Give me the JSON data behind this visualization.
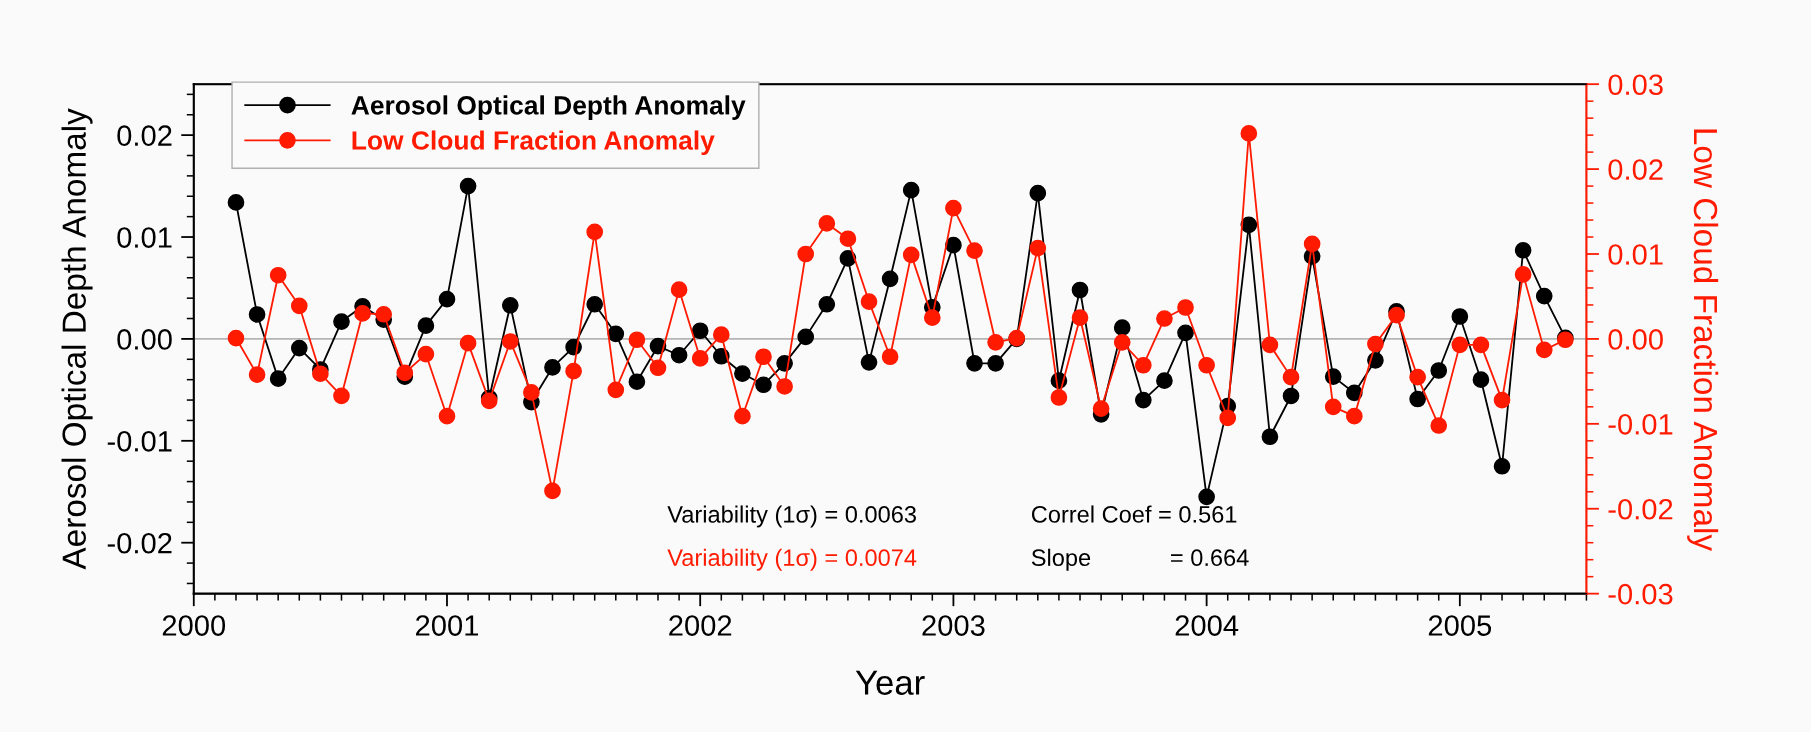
{
  "chart_data": {
    "type": "line",
    "xlabel": "Year",
    "ylabel": "Aerosol Optical Depth Anomaly",
    "y2label": "Low Cloud Fraction Anomaly",
    "x": [
      "2000-03",
      "2000-04",
      "2000-05",
      "2000-06",
      "2000-07",
      "2000-08",
      "2000-09",
      "2000-10",
      "2000-11",
      "2000-12",
      "2001-01",
      "2001-02",
      "2001-03",
      "2001-04",
      "2001-05",
      "2001-06",
      "2001-07",
      "2001-08",
      "2001-09",
      "2001-10",
      "2001-11",
      "2001-12",
      "2002-01",
      "2002-02",
      "2002-03",
      "2002-04",
      "2002-05",
      "2002-06",
      "2002-07",
      "2002-08",
      "2002-09",
      "2002-10",
      "2002-11",
      "2002-12",
      "2003-01",
      "2003-02",
      "2003-03",
      "2003-04",
      "2003-05",
      "2003-06",
      "2003-07",
      "2003-08",
      "2003-09",
      "2003-10",
      "2003-11",
      "2003-12",
      "2004-01",
      "2004-02",
      "2004-03",
      "2004-04",
      "2004-05",
      "2004-06",
      "2004-07",
      "2004-08",
      "2004-09",
      "2004-10",
      "2004-11",
      "2004-12",
      "2005-01",
      "2005-02",
      "2005-03",
      "2005-04",
      "2005-05",
      "2005-06"
    ],
    "series": [
      {
        "name": "Aerosol Optical Depth Anomaly",
        "color": "#000000",
        "axis": "y",
        "values": [
          0.0134,
          0.0024,
          -0.0039,
          -0.0009,
          -0.003,
          0.0017,
          0.0032,
          0.0019,
          -0.0037,
          0.0013,
          0.0039,
          0.015,
          -0.0058,
          0.0033,
          -0.0062,
          -0.0028,
          -0.0008,
          0.0034,
          0.0005,
          -0.0042,
          -0.0007,
          -0.0016,
          0.0008,
          -0.0017,
          -0.0034,
          -0.0045,
          -0.0024,
          0.0002,
          0.0034,
          0.0079,
          -0.0023,
          0.0059,
          0.0146,
          0.0031,
          0.0092,
          -0.0024,
          -0.0024,
          0.0,
          0.0143,
          -0.0041,
          0.0048,
          -0.0074,
          0.0011,
          -0.006,
          -0.0041,
          0.0006,
          -0.0155,
          -0.0066,
          0.0112,
          -0.0096,
          -0.0056,
          0.0081,
          -0.0037,
          -0.0053,
          -0.0021,
          0.0027,
          -0.0059,
          -0.0031,
          0.0022,
          -0.004,
          -0.0125,
          0.0087,
          0.0042,
          0.0001
        ]
      },
      {
        "name": "Low Cloud Fraction Anomaly",
        "color": "#ff1a00",
        "axis": "y2",
        "values": [
          0.0001,
          -0.0042,
          0.0075,
          0.0039,
          -0.0041,
          -0.0067,
          0.003,
          0.0029,
          -0.004,
          -0.0018,
          -0.0091,
          -0.0005,
          -0.0073,
          -0.0003,
          -0.0063,
          -0.0179,
          -0.0038,
          0.0126,
          -0.006,
          -0.0001,
          -0.0034,
          0.0058,
          -0.0023,
          0.0005,
          -0.0091,
          -0.0021,
          -0.0056,
          0.01,
          0.0136,
          0.0118,
          0.0044,
          -0.0021,
          0.0099,
          0.0025,
          0.0154,
          0.0104,
          -0.0004,
          0.0001,
          0.0107,
          -0.0069,
          0.0025,
          -0.0082,
          -0.0004,
          -0.0031,
          0.0024,
          0.0037,
          -0.0031,
          -0.0093,
          0.0242,
          -0.0007,
          -0.0045,
          0.0112,
          -0.008,
          -0.0091,
          -0.0006,
          0.0028,
          -0.0045,
          -0.0102,
          -0.0007,
          -0.0007,
          -0.0072,
          0.0076,
          -0.0013,
          -0.0001
        ]
      }
    ],
    "xlim": [
      "2000",
      "2005-07"
    ],
    "xticks": [
      "2000",
      "2001",
      "2002",
      "2003",
      "2004",
      "2005"
    ],
    "ylim": [
      -0.025,
      0.025
    ],
    "yticks": [
      {
        "value": -0.02,
        "label": "-0.02"
      },
      {
        "value": -0.01,
        "label": "-0.01"
      },
      {
        "value": 0,
        "label": "0.00"
      },
      {
        "value": 0.01,
        "label": "0.01"
      },
      {
        "value": 0.02,
        "label": "0.02"
      }
    ],
    "y2lim": [
      -0.03,
      0.03
    ],
    "y2ticks": [
      {
        "value": -0.03,
        "label": "-0.03"
      },
      {
        "value": -0.02,
        "label": "-0.02"
      },
      {
        "value": -0.01,
        "label": "-0.01"
      },
      {
        "value": 0,
        "label": "0.00"
      },
      {
        "value": 0.01,
        "label": "0.01"
      },
      {
        "value": 0.02,
        "label": "0.02"
      },
      {
        "value": 0.03,
        "label": "0.03"
      }
    ],
    "ref_lines": [
      {
        "axis": "y",
        "value": 0,
        "color": "#b4b4b4"
      }
    ],
    "annotations": [
      "Variability (1σ) = 0.0063",
      "Variability (1σ) = 0.0074",
      "Correl Coef = 0.561",
      "Slope            = 0.664"
    ],
    "marker": "circle",
    "line_style": "solid",
    "grid": false,
    "legend": "top left"
  }
}
